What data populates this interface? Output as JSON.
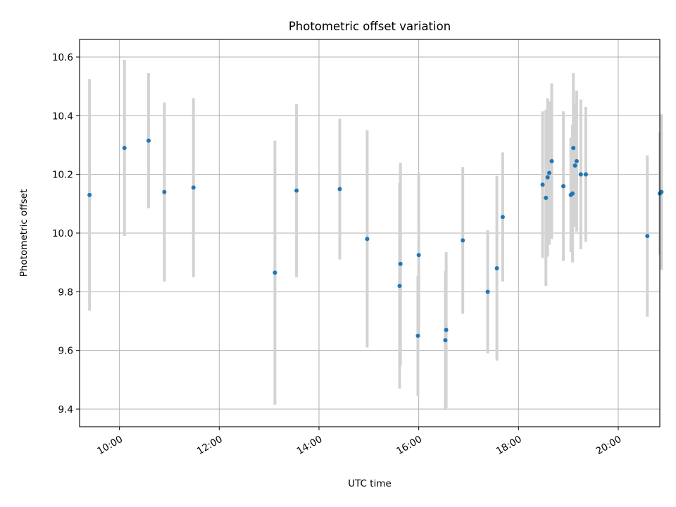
{
  "chart_data": {
    "type": "scatter",
    "title": "Photometric offset variation",
    "xlabel": "UTC time",
    "ylabel": "Photometric offset",
    "x_ticks": [
      "10:00",
      "12:00",
      "14:00",
      "16:00",
      "18:00",
      "20:00"
    ],
    "y_ticks": [
      "9.4",
      "9.6",
      "9.8",
      "10.0",
      "10.2",
      "10.4",
      "10.6"
    ],
    "xlim": [
      "09:12",
      "20:50"
    ],
    "ylim": [
      9.34,
      10.66
    ],
    "grid": true,
    "error_bars": true,
    "colors": {
      "points": "#1f77b4",
      "error_bars": "#d3d3d3",
      "grid": "#b0b0b0"
    },
    "points": [
      {
        "x": "09:24",
        "y": 10.13,
        "yerr": 0.395
      },
      {
        "x": "10:06",
        "y": 10.29,
        "yerr": 0.3
      },
      {
        "x": "10:35",
        "y": 10.315,
        "yerr": 0.23
      },
      {
        "x": "10:54",
        "y": 10.14,
        "yerr": 0.305
      },
      {
        "x": "11:29",
        "y": 10.155,
        "yerr": 0.305
      },
      {
        "x": "13:07",
        "y": 9.865,
        "yerr": 0.45
      },
      {
        "x": "13:33",
        "y": 10.145,
        "yerr": 0.295
      },
      {
        "x": "14:25",
        "y": 10.15,
        "yerr": 0.24
      },
      {
        "x": "14:58",
        "y": 9.98,
        "yerr": 0.37
      },
      {
        "x": "15:37",
        "y": 9.82,
        "yerr": 0.35
      },
      {
        "x": "15:38",
        "y": 9.895,
        "yerr": 0.345
      },
      {
        "x": "15:59",
        "y": 9.65,
        "yerr": 0.205
      },
      {
        "x": "16:00",
        "y": 9.925,
        "yerr": 0.28
      },
      {
        "x": "16:32",
        "y": 9.635,
        "yerr": 0.235
      },
      {
        "x": "16:33",
        "y": 9.67,
        "yerr": 0.265
      },
      {
        "x": "16:53",
        "y": 9.975,
        "yerr": 0.25
      },
      {
        "x": "17:23",
        "y": 9.8,
        "yerr": 0.21
      },
      {
        "x": "17:34",
        "y": 9.88,
        "yerr": 0.315
      },
      {
        "x": "17:41",
        "y": 10.055,
        "yerr": 0.22
      },
      {
        "x": "18:29",
        "y": 10.165,
        "yerr": 0.25
      },
      {
        "x": "18:33",
        "y": 10.12,
        "yerr": 0.3
      },
      {
        "x": "18:35",
        "y": 10.19,
        "yerr": 0.27
      },
      {
        "x": "18:37",
        "y": 10.205,
        "yerr": 0.245
      },
      {
        "x": "18:40",
        "y": 10.245,
        "yerr": 0.265
      },
      {
        "x": "18:54",
        "y": 10.16,
        "yerr": 0.255
      },
      {
        "x": "19:03",
        "y": 10.13,
        "yerr": 0.195
      },
      {
        "x": "19:05",
        "y": 10.135,
        "yerr": 0.235
      },
      {
        "x": "19:06",
        "y": 10.29,
        "yerr": 0.255
      },
      {
        "x": "19:08",
        "y": 10.23,
        "yerr": 0.21
      },
      {
        "x": "19:10",
        "y": 10.245,
        "yerr": 0.24
      },
      {
        "x": "19:15",
        "y": 10.2,
        "yerr": 0.255
      },
      {
        "x": "19:21",
        "y": 10.2,
        "yerr": 0.23
      },
      {
        "x": "20:35",
        "y": 9.99,
        "yerr": 0.275
      },
      {
        "x": "20:50",
        "y": 10.135,
        "yerr": 0.21
      },
      {
        "x": "20:52",
        "y": 10.14,
        "yerr": 0.265
      }
    ]
  }
}
